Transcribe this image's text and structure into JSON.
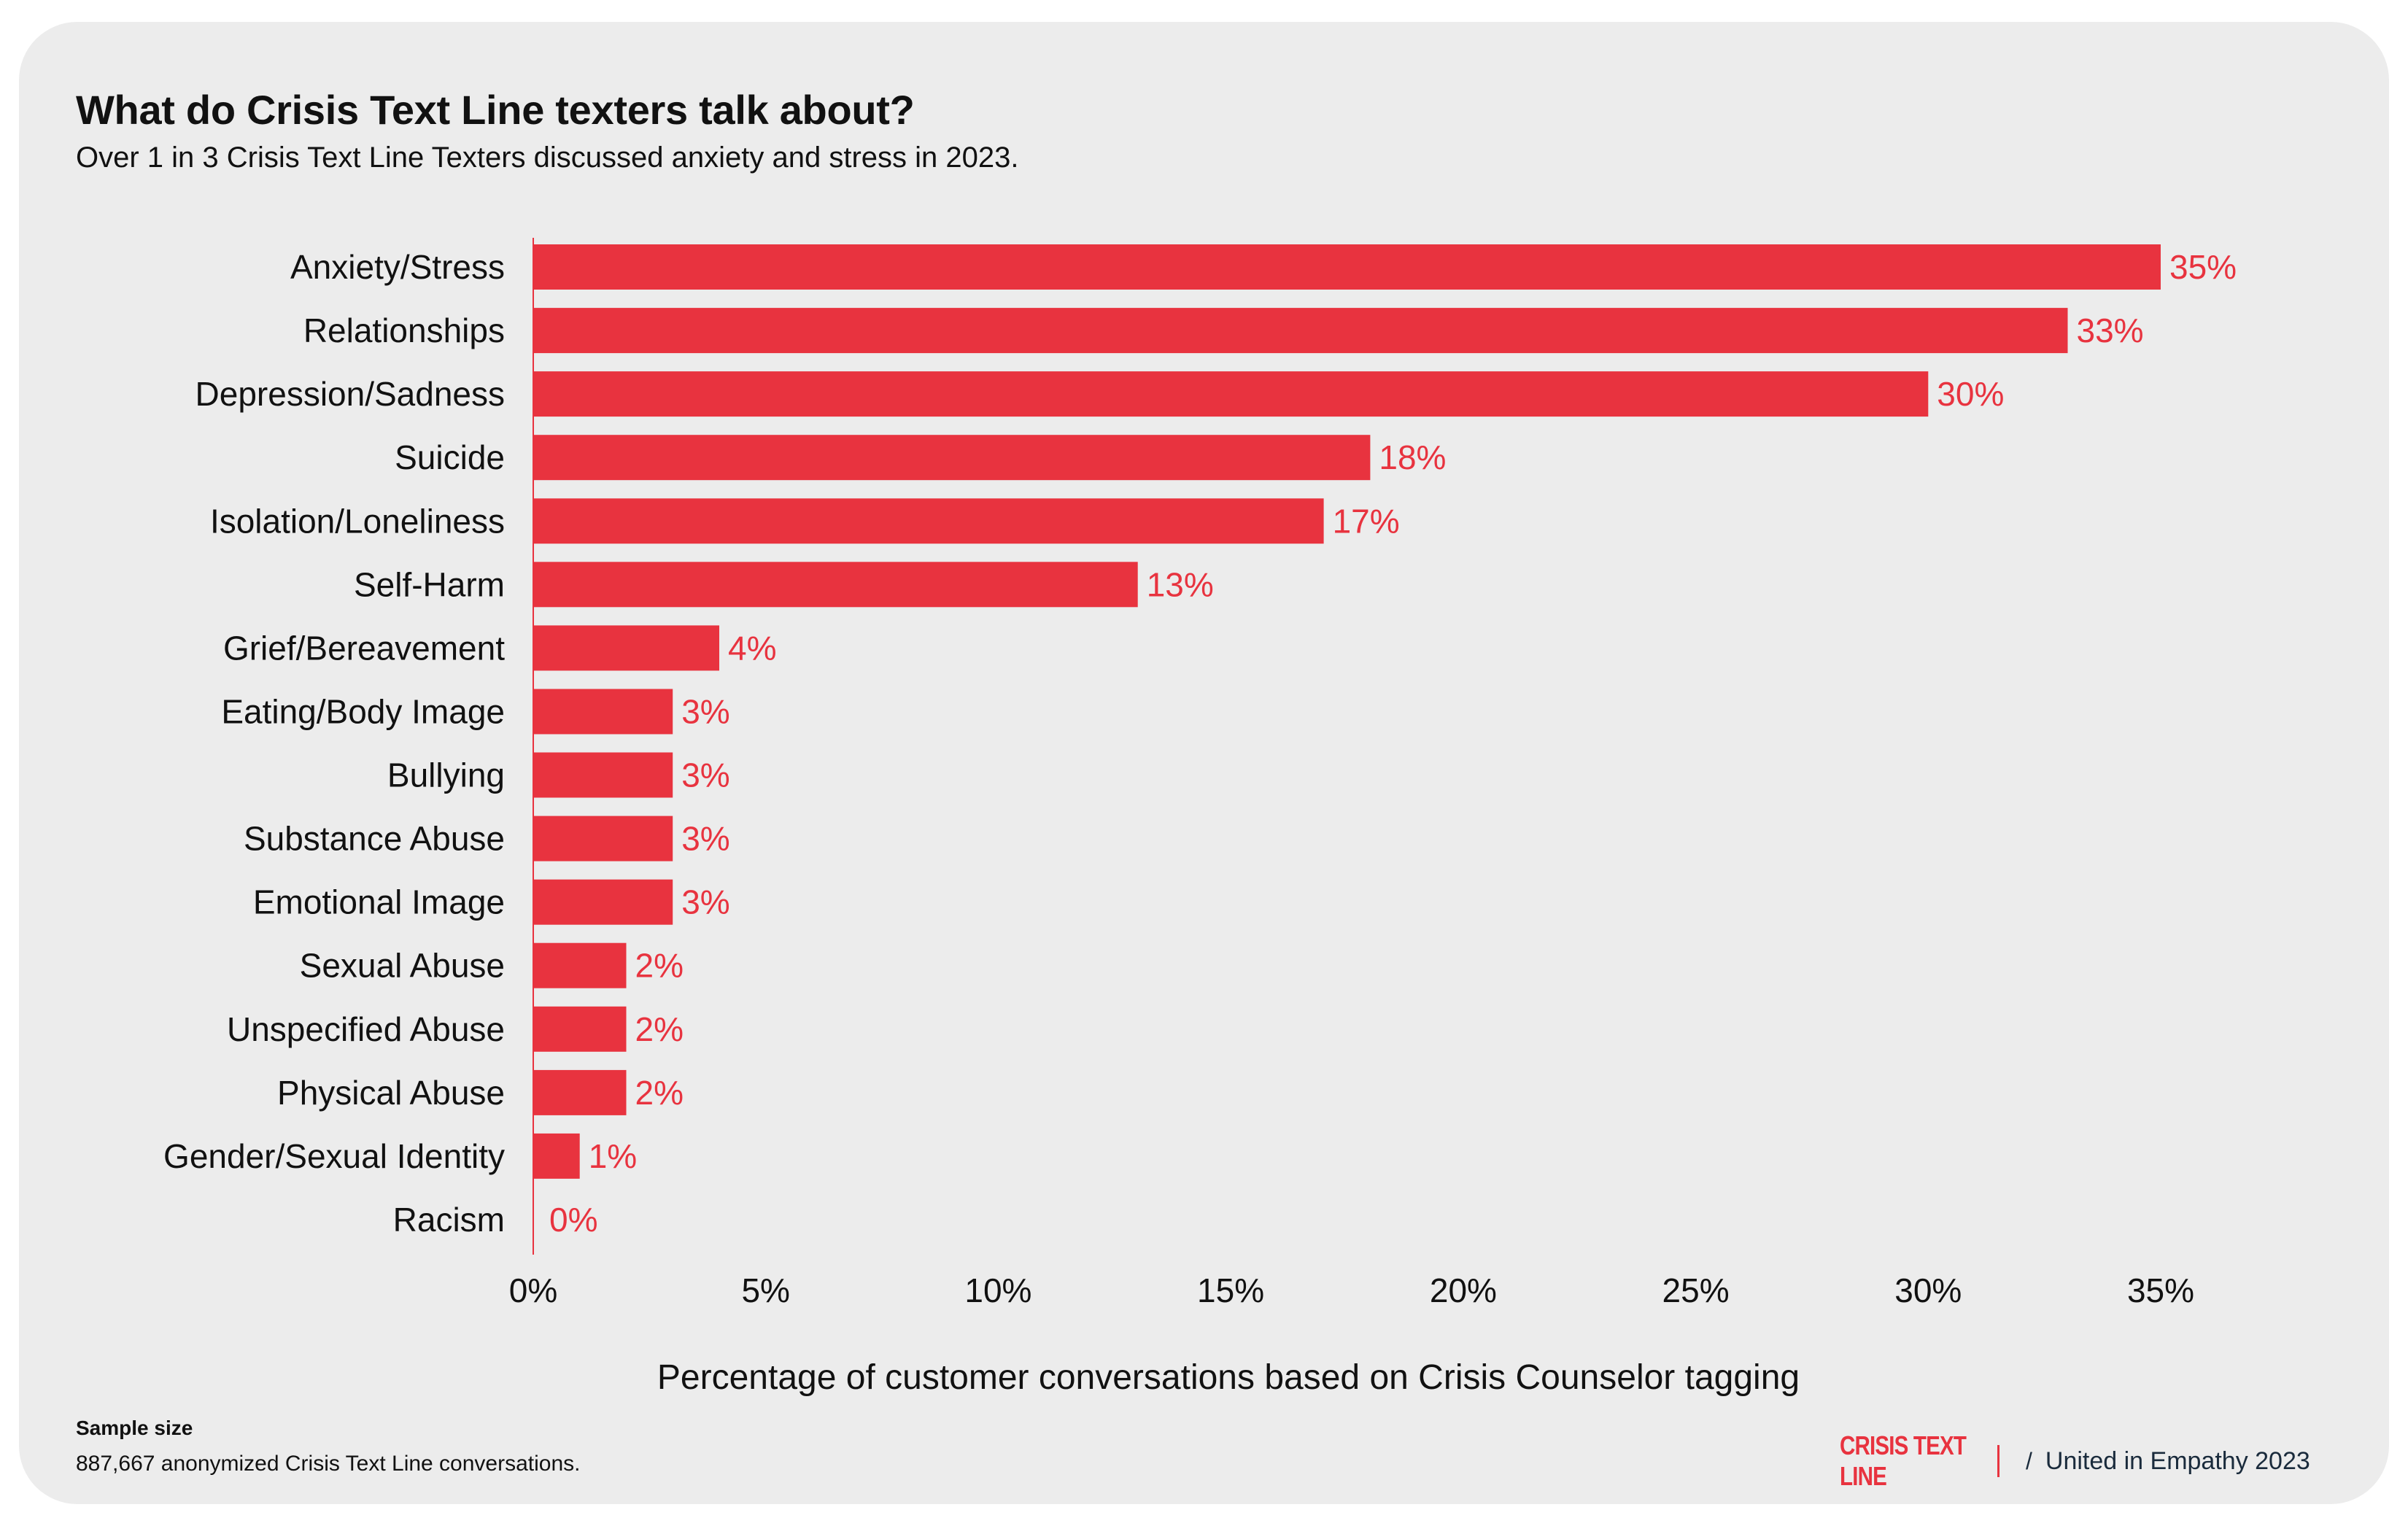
{
  "title": "What do Crisis Text Line texters talk about?",
  "subtitle": "Over 1 in 3 Crisis Text Line Texters discussed anxiety and stress in 2023.",
  "chart_data": {
    "type": "bar",
    "orientation": "horizontal",
    "categories": [
      "Anxiety/Stress",
      "Relationships",
      "Depression/Sadness",
      "Suicide",
      "Isolation/Loneliness",
      "Self-Harm",
      "Grief/Bereavement",
      "Eating/Body Image",
      "Bullying",
      "Substance Abuse",
      "Emotional Image",
      "Sexual Abuse",
      "Unspecified Abuse",
      "Physical Abuse",
      "Gender/Sexual Identity",
      "Racism"
    ],
    "values": [
      35,
      33,
      30,
      18,
      17,
      13,
      4,
      3,
      3,
      3,
      3,
      2,
      2,
      2,
      1,
      0
    ],
    "value_labels": [
      "35%",
      "33%",
      "30%",
      "18%",
      "17%",
      "13%",
      "4%",
      "3%",
      "3%",
      "3%",
      "3%",
      "2%",
      "2%",
      "2%",
      "1%",
      "0%"
    ],
    "xticks": [
      0,
      5,
      10,
      15,
      20,
      25,
      30,
      35
    ],
    "xtick_labels": [
      "0%",
      "5%",
      "10%",
      "15%",
      "20%",
      "25%",
      "30%",
      "35%"
    ],
    "xlim": [
      0,
      35
    ],
    "xlabel": "Percentage of customer conversations based on Crisis Counselor tagging",
    "ylabel": "",
    "grid": false,
    "bar_color": "#e8333f"
  },
  "footer": {
    "sample_heading": "Sample size",
    "sample_text": "887,667 anonymized Crisis Text Line conversations.",
    "logo_text": "CRISIS TEXT LINE",
    "separator": "/",
    "report_name": "United in Empathy 2023"
  },
  "colors": {
    "accent": "#e8333f",
    "card_background": "#ececec",
    "text": "#111111"
  }
}
